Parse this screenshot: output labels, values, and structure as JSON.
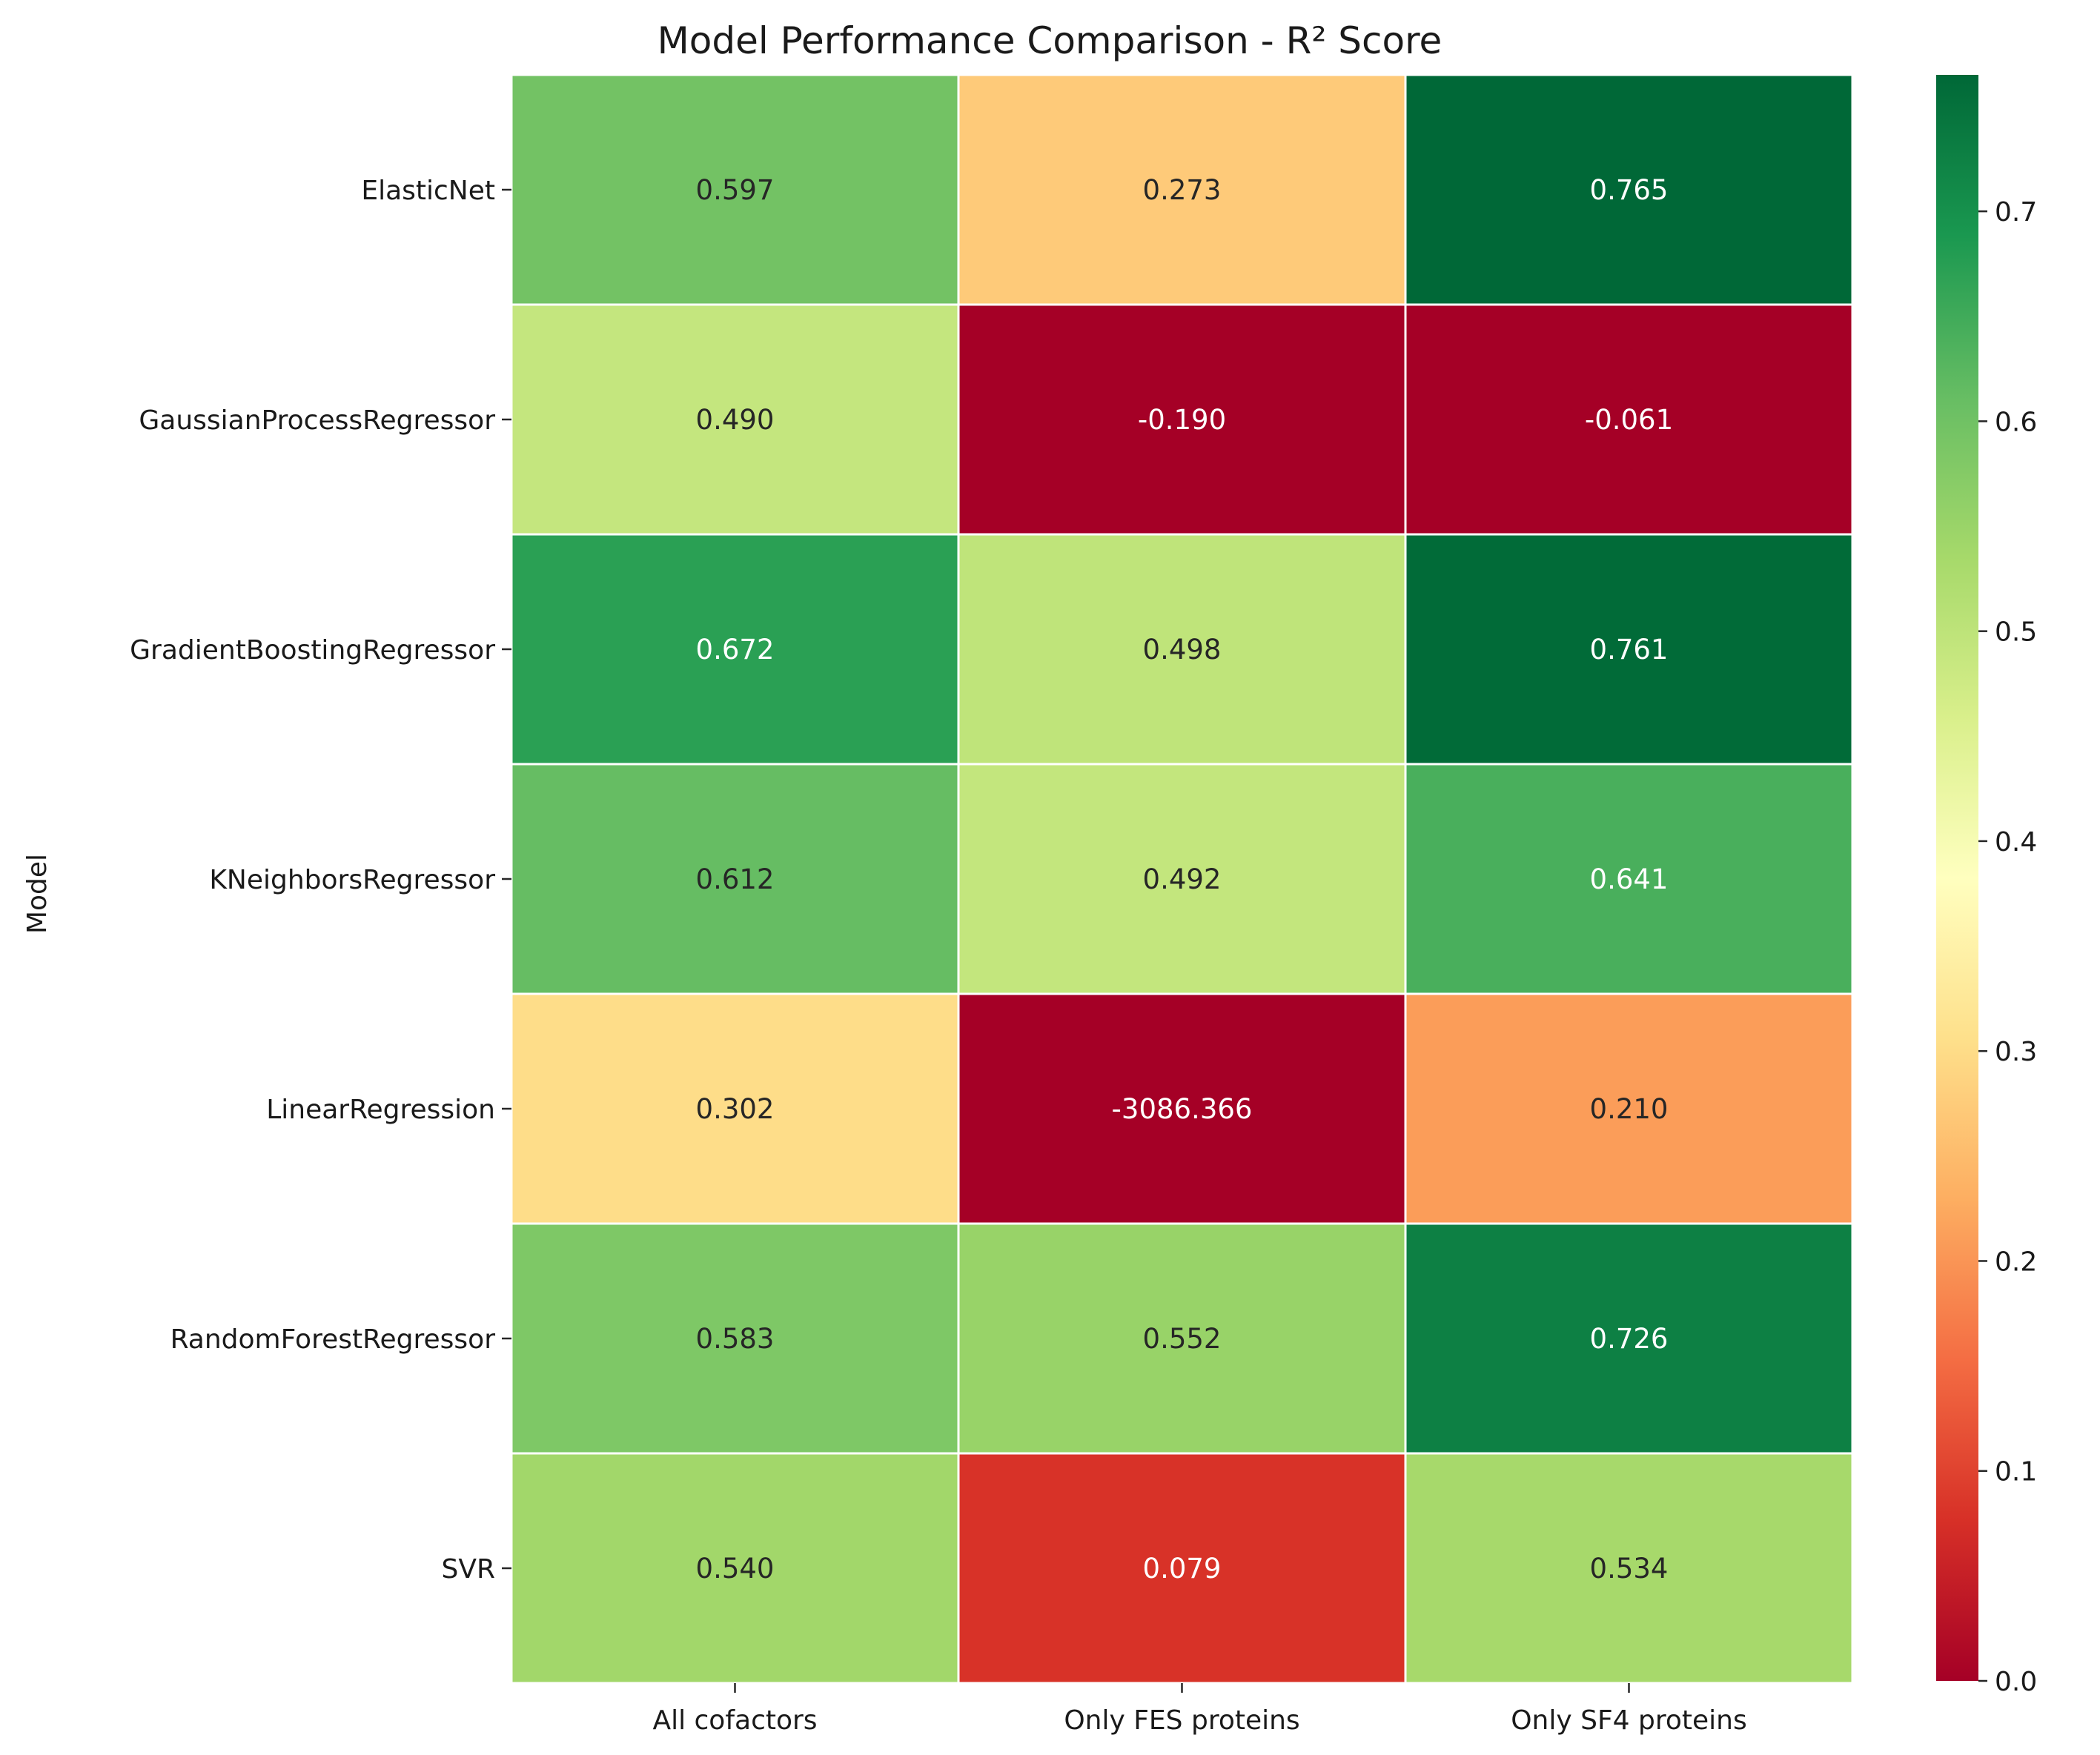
{
  "chart_data": {
    "type": "heatmap",
    "title": "Model Performance Comparison - R² Score",
    "xlabel": "",
    "ylabel": "Model",
    "x_categories": [
      "All cofactors",
      "Only FES proteins",
      "Only SF4 proteins"
    ],
    "y_categories": [
      "ElasticNet",
      "GaussianProcessRegressor",
      "GradientBoostingRegressor",
      "KNeighborsRegressor",
      "LinearRegression",
      "RandomForestRegressor",
      "SVR"
    ],
    "values": [
      [
        0.597,
        0.273,
        0.765
      ],
      [
        0.49,
        -0.19,
        -0.061
      ],
      [
        0.672,
        0.498,
        0.761
      ],
      [
        0.612,
        0.492,
        0.641
      ],
      [
        0.302,
        -3086.366,
        0.21
      ],
      [
        0.583,
        0.552,
        0.726
      ],
      [
        0.54,
        0.079,
        0.534
      ]
    ],
    "cell_labels": [
      [
        "0.597",
        "0.273",
        "0.765"
      ],
      [
        "0.490",
        "-0.190",
        "-0.061"
      ],
      [
        "0.672",
        "0.498",
        "0.761"
      ],
      [
        "0.612",
        "0.492",
        "0.641"
      ],
      [
        "0.302",
        "-3086.366",
        "0.210"
      ],
      [
        "0.583",
        "0.552",
        "0.726"
      ],
      [
        "0.540",
        "0.079",
        "0.534"
      ]
    ],
    "colorbar": {
      "colormap": "RdYlGn",
      "vmin": 0.0,
      "vmax": 0.765,
      "ticks": [
        0.0,
        0.1,
        0.2,
        0.3,
        0.4,
        0.5,
        0.6,
        0.7
      ],
      "tick_labels": [
        "0.0",
        "0.1",
        "0.2",
        "0.3",
        "0.4",
        "0.5",
        "0.6",
        "0.7"
      ]
    },
    "cell_border_color": "#ffffff",
    "grid": false,
    "legend": "colorbar-right"
  }
}
